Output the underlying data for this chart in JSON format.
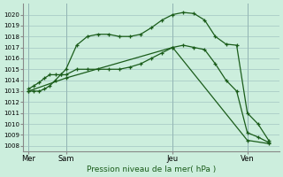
{
  "bg_color": "#cceedd",
  "grid_color": "#99bbbb",
  "line_color": "#1a5c1a",
  "title": "Pression niveau de la mer( hPa )",
  "ylim": [
    1007.5,
    1021.0
  ],
  "yticks": [
    1008,
    1009,
    1010,
    1011,
    1012,
    1013,
    1014,
    1015,
    1016,
    1017,
    1018,
    1019,
    1020
  ],
  "xlim": [
    0,
    24
  ],
  "xtick_positions": [
    0.5,
    4,
    14,
    21
  ],
  "xtick_labels": [
    "Mer",
    "Sam",
    "Jeu",
    "Ven"
  ],
  "vline_positions": [
    0.5,
    4,
    14,
    21
  ],
  "series1_x": [
    0.5,
    1,
    1.5,
    2,
    2.5,
    3,
    3.5,
    4,
    5,
    6,
    7,
    8,
    9,
    10,
    11,
    12,
    13,
    14,
    15,
    16,
    17,
    18,
    19,
    20,
    21,
    22,
    23
  ],
  "series1_y": [
    1013,
    1013,
    1013,
    1013.2,
    1013.5,
    1014,
    1014.5,
    1015,
    1017.2,
    1018,
    1018.2,
    1018.2,
    1018,
    1018,
    1018.2,
    1018.8,
    1019.5,
    1020,
    1020.2,
    1020.1,
    1019.5,
    1018,
    1017.3,
    1017.2,
    1011,
    1010,
    1008.5
  ],
  "series2_x": [
    0.5,
    1,
    1.5,
    2,
    2.5,
    3,
    3.5,
    4,
    5,
    6,
    7,
    8,
    9,
    10,
    11,
    12,
    13,
    14,
    15,
    16,
    17,
    18,
    19,
    20,
    21,
    22,
    23
  ],
  "series2_y": [
    1013.2,
    1013.5,
    1013.8,
    1014.2,
    1014.5,
    1014.5,
    1014.5,
    1014.5,
    1015,
    1015,
    1015,
    1015,
    1015,
    1015.2,
    1015.5,
    1016,
    1016.5,
    1017,
    1017.2,
    1017,
    1016.8,
    1015.5,
    1014,
    1013,
    1009.2,
    1008.8,
    1008.3
  ],
  "series3_x": [
    0.5,
    4,
    14,
    21,
    23
  ],
  "series3_y": [
    1013,
    1014.2,
    1017,
    1008.5,
    1008.2
  ]
}
